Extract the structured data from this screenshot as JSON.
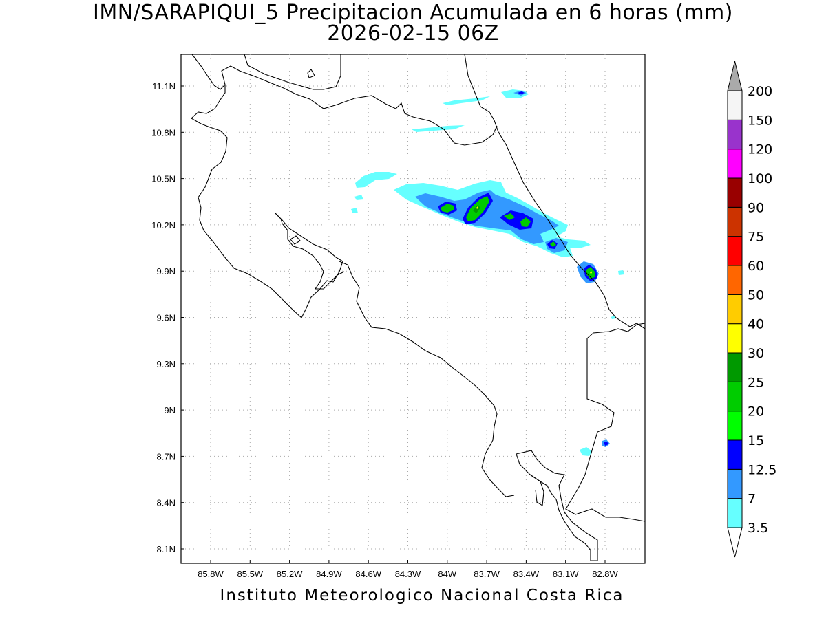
{
  "map": {
    "title_line1": "IMN/SARAPIQUI_5 Precipitacion Acumulada en 6 horas (mm)",
    "title_line2": "2026-02-15 06Z",
    "footer": "Instituto Meteorologico Nacional Costa Rica",
    "lon_ticks": [
      "85.8W",
      "85.5W",
      "85.2W",
      "84.9W",
      "84.6W",
      "84.3W",
      "84W",
      "83.7W",
      "83.4W",
      "83.1W",
      "82.8W"
    ],
    "lat_ticks": [
      "11.1N",
      "10.8N",
      "10.5N",
      "10.2N",
      "9.9N",
      "9.6N",
      "9.3N",
      "9N",
      "8.7N",
      "8.4N",
      "8.1N"
    ]
  },
  "colorbar": {
    "labels": [
      "3.5",
      "7",
      "12.5",
      "15",
      "20",
      "25",
      "30",
      "40",
      "50",
      "60",
      "75",
      "90",
      "100",
      "120",
      "150",
      "200"
    ],
    "colors": [
      "#66ffff",
      "#3399ff",
      "#0000ff",
      "#00ff00",
      "#00cc00",
      "#009900",
      "#ffff00",
      "#ffcc00",
      "#ff6600",
      "#ff0000",
      "#cc3300",
      "#990000",
      "#ff00ff",
      "#9933cc",
      "#f5f5f5",
      "#aaaaaa"
    ]
  }
}
